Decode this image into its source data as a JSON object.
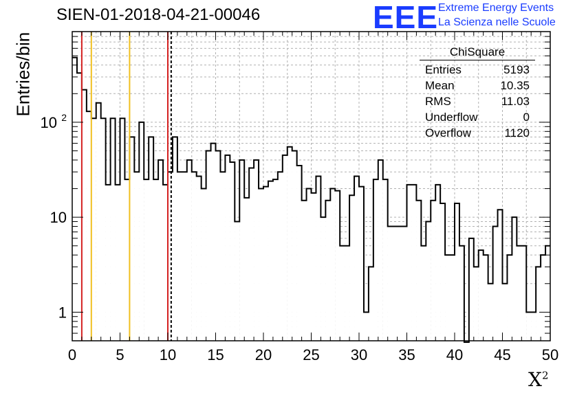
{
  "header": {
    "title": "SIEN-01-2018-04-21-00046",
    "logo_text": "EEE",
    "logo_line1": "Extreme Energy Events",
    "logo_line2": "La Scienza nelle Scuole"
  },
  "stats": {
    "name": "ChiSquare",
    "rows": [
      {
        "label": "Entries",
        "value": "5193"
      },
      {
        "label": "Mean",
        "value": "10.35"
      },
      {
        "label": "RMS",
        "value": "11.03"
      },
      {
        "label": "Underflow",
        "value": "0"
      },
      {
        "label": "Overflow",
        "value": "1120"
      }
    ]
  },
  "chart_data": {
    "type": "bar",
    "xlabel": "X",
    "xlabel_sup": "2",
    "ylabel": "Entries/bin",
    "xlim": [
      0,
      50
    ],
    "ylim": [
      0.5,
      900
    ],
    "yscale": "log",
    "grid": true,
    "bin_width": 0.5,
    "xticks": [
      "0",
      "5",
      "10",
      "15",
      "20",
      "25",
      "30",
      "35",
      "40",
      "45",
      "50"
    ],
    "yticks": [
      {
        "value": 1,
        "label": "1"
      },
      {
        "value": 10,
        "label": "10"
      },
      {
        "value": 100,
        "label": "10",
        "sup": "2"
      }
    ],
    "vlines": [
      {
        "x": 1,
        "color": "#d42020",
        "style": "solid"
      },
      {
        "x": 2,
        "color": "#f0c020",
        "style": "solid"
      },
      {
        "x": 6,
        "color": "#f0c020",
        "style": "solid"
      },
      {
        "x": 10,
        "color": "#d42020",
        "style": "solid"
      },
      {
        "x": 10.35,
        "color": "#000000",
        "style": "dashed"
      }
    ],
    "values": [
      480,
      330,
      220,
      130,
      110,
      160,
      110,
      22,
      110,
      22,
      110,
      25,
      70,
      30,
      100,
      25,
      70,
      25,
      40,
      22,
      30,
      70,
      30,
      30,
      40,
      30,
      27,
      20,
      50,
      60,
      50,
      30,
      45,
      38,
      9,
      40,
      16,
      33,
      40,
      20,
      21,
      24,
      25,
      30,
      45,
      55,
      50,
      35,
      15,
      20,
      18,
      27,
      10,
      15,
      20,
      19,
      5,
      5,
      17,
      27,
      21,
      1,
      3,
      25,
      40,
      25,
      8,
      8,
      8,
      8,
      22,
      22,
      15,
      5,
      9,
      15,
      22,
      14,
      4,
      4,
      14,
      5,
      0,
      6,
      3,
      4.5,
      4,
      2,
      8,
      12,
      2,
      4,
      10,
      5,
      5,
      1,
      1,
      3,
      4,
      5
    ]
  }
}
